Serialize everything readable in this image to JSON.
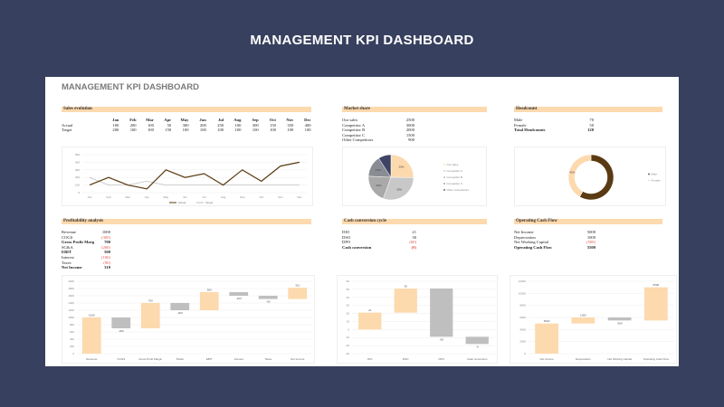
{
  "page_title": "MANAGEMENT KPI DASHBOARD",
  "sheet_title": "MANAGEMENT KPI DASHBOARD",
  "colors": {
    "background": "#38405f",
    "header": "#fdd9ae",
    "actual": "#5a3a12",
    "target": "#bfbfbf",
    "positive": "#fdd9ae",
    "negative": "#bfbfbf"
  },
  "sales": {
    "header": "Sales evolution",
    "months": [
      "Jan",
      "Feb",
      "Mar",
      "Apr",
      "May",
      "Jun",
      "Jul",
      "Aug",
      "Sep",
      "Oct",
      "Nov",
      "Dec"
    ],
    "rows": [
      {
        "label": "Actual",
        "values": [
          100,
          200,
          100,
          50,
          300,
          200,
          250,
          100,
          300,
          150,
          350,
          400
        ]
      },
      {
        "label": "Target",
        "values": [
          200,
          100,
          100,
          150,
          100,
          100,
          100,
          100,
          100,
          100,
          100,
          100
        ]
      }
    ],
    "chart_data": {
      "type": "line",
      "categories": [
        "Jan",
        "Feb",
        "Mar",
        "Apr",
        "May",
        "Jun",
        "Jul",
        "Aug",
        "Sep",
        "Oct",
        "Nov",
        "Dec"
      ],
      "ylim": [
        0,
        500
      ],
      "yticks": [
        0,
        100,
        200,
        300,
        400,
        500
      ],
      "grid": true,
      "legend": "bottom",
      "series": [
        {
          "name": "Actual",
          "values": [
            100,
            200,
            100,
            50,
            300,
            200,
            250,
            100,
            300,
            150,
            350,
            400
          ]
        },
        {
          "name": "Target",
          "values": [
            200,
            100,
            100,
            150,
            100,
            100,
            100,
            100,
            100,
            100,
            100,
            100
          ]
        }
      ]
    }
  },
  "market": {
    "header": "Market share",
    "rows": [
      {
        "label": "Our sales",
        "value": "2500"
      },
      {
        "label": "Competitor A",
        "value": "3000"
      },
      {
        "label": "Competitor B",
        "value": "2000"
      },
      {
        "label": "Competitor C",
        "value": "1500"
      },
      {
        "label": "Other Competitors",
        "value": "900"
      }
    ],
    "chart_data": {
      "type": "pie",
      "legend": "right",
      "labels": [
        "Our sales",
        "Competitor A",
        "Competitor B",
        "Competitor C",
        "Other Competitors"
      ],
      "values": [
        2500,
        3000,
        2000,
        1500,
        900
      ],
      "data_labels": [
        "25%",
        "30%",
        "20%",
        "15%",
        "9%"
      ],
      "colors": [
        "#fdd9ae",
        "#c8c8c8",
        "#a9a9a9",
        "#8a8c94",
        "#3e4466"
      ]
    }
  },
  "headcount": {
    "header": "Headcount",
    "rows": [
      {
        "label": "Male",
        "value": "70"
      },
      {
        "label": "Female",
        "value": "50"
      },
      {
        "label": "Total Headcounts",
        "value": "120",
        "bold": true
      }
    ],
    "chart_data": {
      "type": "pie",
      "donut": true,
      "legend": "right",
      "labels": [
        "Male",
        "Female"
      ],
      "values": [
        70,
        50
      ],
      "data_labels": [
        "58%",
        "42%"
      ],
      "colors": [
        "#5a3a12",
        "#fdd9ae"
      ]
    }
  },
  "profit": {
    "header": "Profitability analysis",
    "rows": [
      {
        "label": "Revenue",
        "value": "1000"
      },
      {
        "label": "COGS",
        "value": "(300)",
        "neg": true
      },
      {
        "label": "Gross Profit Marg",
        "value": "700",
        "bold": true
      },
      {
        "label": "SG&A",
        "value": "(200)",
        "neg": true
      },
      {
        "label": "EBIT",
        "value": "500",
        "bold": true
      },
      {
        "label": "Interest",
        "value": "(100)",
        "neg": true
      },
      {
        "label": "Taxes",
        "value": "(90)",
        "neg": true
      },
      {
        "label": "Net Income",
        "value": "310",
        "bold": true
      }
    ],
    "chart_data": {
      "type": "bar",
      "subtype": "waterfall",
      "categories": [
        "Revenue",
        "COGS",
        "Gross Profit Margin",
        "SG&A",
        "EBIT",
        "Interest",
        "Taxes",
        "Net Income"
      ],
      "values": [
        1000,
        -300,
        700,
        -200,
        500,
        -100,
        -90,
        310
      ],
      "data_labels": [
        "1000",
        "-300",
        "700",
        "-200",
        "500",
        "-100",
        "-90",
        "310"
      ],
      "ylim": [
        0,
        2000
      ],
      "yticks": [
        0,
        200,
        400,
        600,
        800,
        1000,
        1200,
        1400,
        1600,
        1800,
        2000
      ],
      "grid": true
    }
  },
  "ccc": {
    "header": "Cash conversion cycle",
    "rows": [
      {
        "label": "DIO",
        "value": "21"
      },
      {
        "label": "DSO",
        "value": "30"
      },
      {
        "label": "DPO",
        "value": "(60)",
        "neg": true
      },
      {
        "label": "Cash conversion",
        "value": "(9)",
        "neg": true,
        "bold": true
      }
    ],
    "chart_data": {
      "type": "bar",
      "subtype": "waterfall",
      "categories": [
        "DIO",
        "DSO",
        "DPO",
        "Cash conversion"
      ],
      "values": [
        21,
        30,
        -60,
        -9
      ],
      "data_labels": [
        "21",
        "30",
        "-60",
        "-9"
      ],
      "ylim": [
        -30,
        60
      ],
      "yticks": [
        -30,
        -20,
        -10,
        0,
        10,
        20,
        30,
        40,
        50,
        60
      ],
      "grid": true
    }
  },
  "ocf": {
    "header": "Operating Cash Flow",
    "rows": [
      {
        "label": "Net Income",
        "value": "5000"
      },
      {
        "label": "Depreciation",
        "value": "1000"
      },
      {
        "label": "Net Working Capital",
        "value": "(500)",
        "neg": true
      },
      {
        "label": "Operating Cash Flow",
        "value": "5500",
        "bold": true
      }
    ],
    "chart_data": {
      "type": "bar",
      "subtype": "waterfall",
      "categories": [
        "Net Income",
        "Depreciation",
        "Net Working Capital",
        "Operating Cash Flow"
      ],
      "values": [
        5000,
        1000,
        -500,
        5500
      ],
      "data_labels": [
        "5000",
        "1000",
        "-500",
        "5500"
      ],
      "ylim": [
        0,
        12000
      ],
      "yticks": [
        0,
        2000,
        4000,
        6000,
        8000,
        10000,
        12000
      ],
      "grid": true
    }
  }
}
